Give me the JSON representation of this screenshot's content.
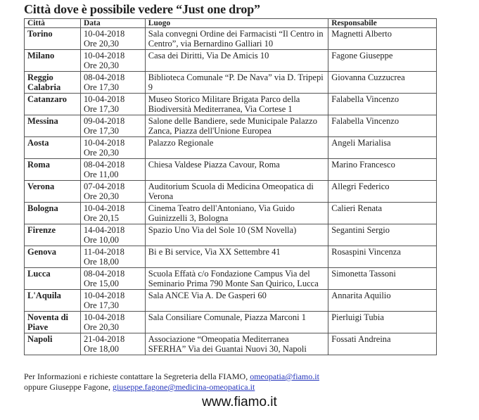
{
  "title": "Città dove è possibile vedere “Just one drop”",
  "table": {
    "headers": [
      "Città",
      "Data",
      "Luogo",
      "Responsabile"
    ],
    "rows": [
      {
        "city": "Torino",
        "date": "10-04-2018",
        "time": "Ore 20,30",
        "place": "Sala convegni Ordine dei Farmacisti “Il Centro in Centro”, via Bernardino Galliari 10",
        "contact": "Magnetti Alberto"
      },
      {
        "city": "Milano",
        "date": "10-04-2018",
        "time": "Ore 20,30",
        "place": "Casa dei Diritti, Via De Amicis 10",
        "contact": "Fagone Giuseppe"
      },
      {
        "city": "Reggio Calabria",
        "date": "08-04-2018",
        "time": "Ore 17,30",
        "place": "Biblioteca Comunale “P. De Nava” via D. Tripepi 9",
        "contact": "Giovanna Cuzzucrea"
      },
      {
        "city": "Catanzaro",
        "date": "10-04-2018",
        "time": "Ore 17,30",
        "place": "Museo Storico Militare Brigata Parco della Biodiversità Mediterranea, Via Cortese 1",
        "contact": "Falabella Vincenzo"
      },
      {
        "city": "Messina",
        "date": "09-04-2018",
        "time": "Ore 17,30",
        "place": "Salone delle Bandiere, sede Municipale Palazzo Zanca, Piazza dell'Unione Europea",
        "contact": "Falabella Vincenzo"
      },
      {
        "city": "Aosta",
        "date": "10-04-2018",
        "time": "Ore 20,30",
        "place": "Palazzo Regionale",
        "contact": "Angeli Marialisa"
      },
      {
        "city": "Roma",
        "date": "08-04-2018",
        "time": "Ore 11,00",
        "place": "Chiesa Valdese Piazza Cavour, Roma",
        "contact": "Marino Francesco"
      },
      {
        "city": "Verona",
        "date": "07-04-2018",
        "time": "Ore 20,30",
        "place": "Auditorium Scuola di Medicina Omeopatica di Verona",
        "contact": "Allegri Federico"
      },
      {
        "city": "Bologna",
        "date": "10-04-2018",
        "time": "Ore 20,15",
        "place": "Cinema Teatro dell'Antoniano, Via Guido Guinizzelli 3, Bologna",
        "contact": "Calieri Renata"
      },
      {
        "city": "Firenze",
        "date": "14-04-2018",
        "time": "Ore 10,00",
        "place": "Spazio Uno Via del Sole 10 (SM Novella)",
        "contact": "Segantini Sergio"
      },
      {
        "city": "Genova",
        "date": "11-04-2018",
        "time": "Ore 18,00",
        "place": "Bi e Bi service, Via XX Settembre 41",
        "contact": "Rosaspini Vincenza"
      },
      {
        "city": "Lucca",
        "date": "08-04-2018",
        "time": "Ore 15,00",
        "place": "Scuola Effatà c/o Fondazione Campus Via del Seminario Prima 790 Monte San Quirico, Lucca",
        "contact": "Simonetta Tassoni"
      },
      {
        "city": "L'Aquila",
        "date": "10-04-2018",
        "time": "Ore 17,30",
        "place": "Sala ANCE Via A. De Gasperi 60",
        "contact": "Annarita Aquilio"
      },
      {
        "city": "Noventa di Piave",
        "date": "10-04-2018",
        "time": "Ore 20,30",
        "place": "Sala Consiliare Comunale, Piazza Marconi 1",
        "contact": "Pierluigi Tubia"
      },
      {
        "city": "Napoli",
        "date": "21-04-2018",
        "time": "Ore 18,00",
        "place": "Associazione “Omeopatia Mediterranea SFERHA” Via dei Guantai Nuovi 30, Napoli",
        "contact": "Fossati Andreina"
      }
    ]
  },
  "footer": {
    "line1_text": "Per Informazioni e richieste contattare la Segreteria della FIAMO, ",
    "line1_email": "omeopatia@fiamo.it",
    "line2_text": "oppure Giuseppe Fagone, ",
    "line2_email": "giuseppe.fagone@medicina-omeopatica.it",
    "website": "www.fiamo.it"
  },
  "colors": {
    "link": "#2233bb",
    "border": "#555555"
  }
}
